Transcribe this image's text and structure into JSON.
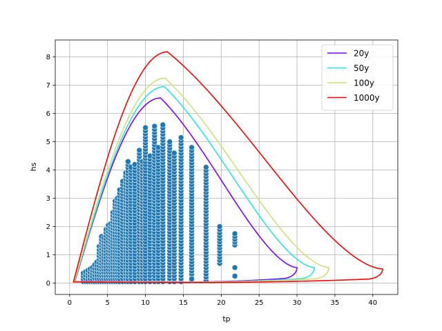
{
  "chart_data": {
    "type": "scatter",
    "title": "",
    "xlabel": "tp",
    "ylabel": "hs",
    "xlim": [
      -1.9,
      43.3
    ],
    "ylim": [
      -0.4,
      8.6
    ],
    "xticks": [
      0,
      5,
      10,
      15,
      20,
      25,
      30,
      35,
      40
    ],
    "yticks": [
      0,
      1,
      2,
      3,
      4,
      5,
      6,
      7,
      8
    ],
    "grid": true,
    "legend_position": "upper-right",
    "scatter": {
      "color": "#1f77b4",
      "edge_color": "#ffffff",
      "columns": [
        {
          "tp": 1.8,
          "hs_min": 0.05,
          "hs_max": 0.35
        },
        {
          "tp": 2.1,
          "hs_min": 0.05,
          "hs_max": 0.4
        },
        {
          "tp": 2.4,
          "hs_min": 0.05,
          "hs_max": 0.45
        },
        {
          "tp": 2.7,
          "hs_min": 0.05,
          "hs_max": 0.5
        },
        {
          "tp": 3.0,
          "hs_min": 0.05,
          "hs_max": 0.55
        },
        {
          "tp": 3.3,
          "hs_min": 0.05,
          "hs_max": 0.65
        },
        {
          "tp": 3.6,
          "hs_min": 0.05,
          "hs_max": 0.75
        },
        {
          "tp": 3.9,
          "hs_min": 0.05,
          "hs_max": 1.3
        },
        {
          "tp": 4.2,
          "hs_min": 0.05,
          "hs_max": 1.65
        },
        {
          "tp": 4.5,
          "hs_min": 0.05,
          "hs_max": 1.6
        },
        {
          "tp": 4.8,
          "hs_min": 0.05,
          "hs_max": 1.9
        },
        {
          "tp": 5.1,
          "hs_min": 0.05,
          "hs_max": 2.05
        },
        {
          "tp": 5.4,
          "hs_min": 0.05,
          "hs_max": 2.1
        },
        {
          "tp": 5.7,
          "hs_min": 0.05,
          "hs_max": 2.5
        },
        {
          "tp": 6.0,
          "hs_min": 0.05,
          "hs_max": 2.9
        },
        {
          "tp": 6.3,
          "hs_min": 0.05,
          "hs_max": 3.0
        },
        {
          "tp": 6.6,
          "hs_min": 0.05,
          "hs_max": 3.3
        },
        {
          "tp": 7.0,
          "hs_min": 0.05,
          "hs_max": 3.6
        },
        {
          "tp": 7.4,
          "hs_min": 0.05,
          "hs_max": 3.9
        },
        {
          "tp": 7.7,
          "hs_min": 0.05,
          "hs_max": 4.3
        },
        {
          "tp": 8.1,
          "hs_min": 0.05,
          "hs_max": 4.1
        },
        {
          "tp": 8.6,
          "hs_min": 0.05,
          "hs_max": 4.2
        },
        {
          "tp": 9.2,
          "hs_min": 0.05,
          "hs_max": 4.7
        },
        {
          "tp": 9.6,
          "hs_min": 0.05,
          "hs_max": 4.3
        },
        {
          "tp": 10.0,
          "hs_min": 0.05,
          "hs_max": 5.5
        },
        {
          "tp": 10.6,
          "hs_min": 0.05,
          "hs_max": 4.5
        },
        {
          "tp": 11.2,
          "hs_min": 0.05,
          "hs_max": 5.55
        },
        {
          "tp": 11.7,
          "hs_min": 0.05,
          "hs_max": 4.8
        },
        {
          "tp": 12.3,
          "hs_min": 0.05,
          "hs_max": 5.6
        },
        {
          "tp": 13.2,
          "hs_min": 0.05,
          "hs_max": 5.0
        },
        {
          "tp": 13.8,
          "hs_min": 0.05,
          "hs_max": 4.6
        },
        {
          "tp": 14.7,
          "hs_min": 0.05,
          "hs_max": 5.15
        },
        {
          "tp": 16.1,
          "hs_min": 0.1,
          "hs_max": 4.8
        },
        {
          "tp": 18.0,
          "hs_min": 0.1,
          "hs_max": 4.1
        },
        {
          "tp": 19.8,
          "hs_min": 0.7,
          "hs_max": 2.0
        },
        {
          "tp": 21.8,
          "hs_min": 1.35,
          "hs_max": 1.75
        }
      ],
      "outliers": [
        {
          "x": 21.8,
          "y": 0.55
        },
        {
          "x": 21.8,
          "y": 0.25
        },
        {
          "x": 16.1,
          "y": 0.15
        }
      ]
    },
    "contours": [
      {
        "name": "20y",
        "color": "#7f00ff",
        "peak": [
          12.0,
          6.55
        ],
        "right": [
          30.0,
          0.55
        ],
        "left": [
          0.7,
          0.06
        ],
        "bottom": [
          14.0,
          0.04
        ]
      },
      {
        "name": "50y",
        "color": "#25e6e6",
        "peak": [
          12.5,
          6.95
        ],
        "right": [
          32.3,
          0.55
        ],
        "left": [
          0.65,
          0.05
        ],
        "bottom": [
          14.0,
          0.035
        ]
      },
      {
        "name": "100y",
        "color": "#cce17a",
        "peak": [
          12.6,
          7.25
        ],
        "right": [
          34.2,
          0.55
        ],
        "left": [
          0.6,
          0.05
        ],
        "bottom": [
          14.0,
          0.03
        ]
      },
      {
        "name": "1000y",
        "color": "#ff0000",
        "peak": [
          12.9,
          8.18
        ],
        "right": [
          41.3,
          0.5
        ],
        "left": [
          0.5,
          0.04
        ],
        "bottom": [
          14.0,
          0.02
        ]
      }
    ]
  }
}
